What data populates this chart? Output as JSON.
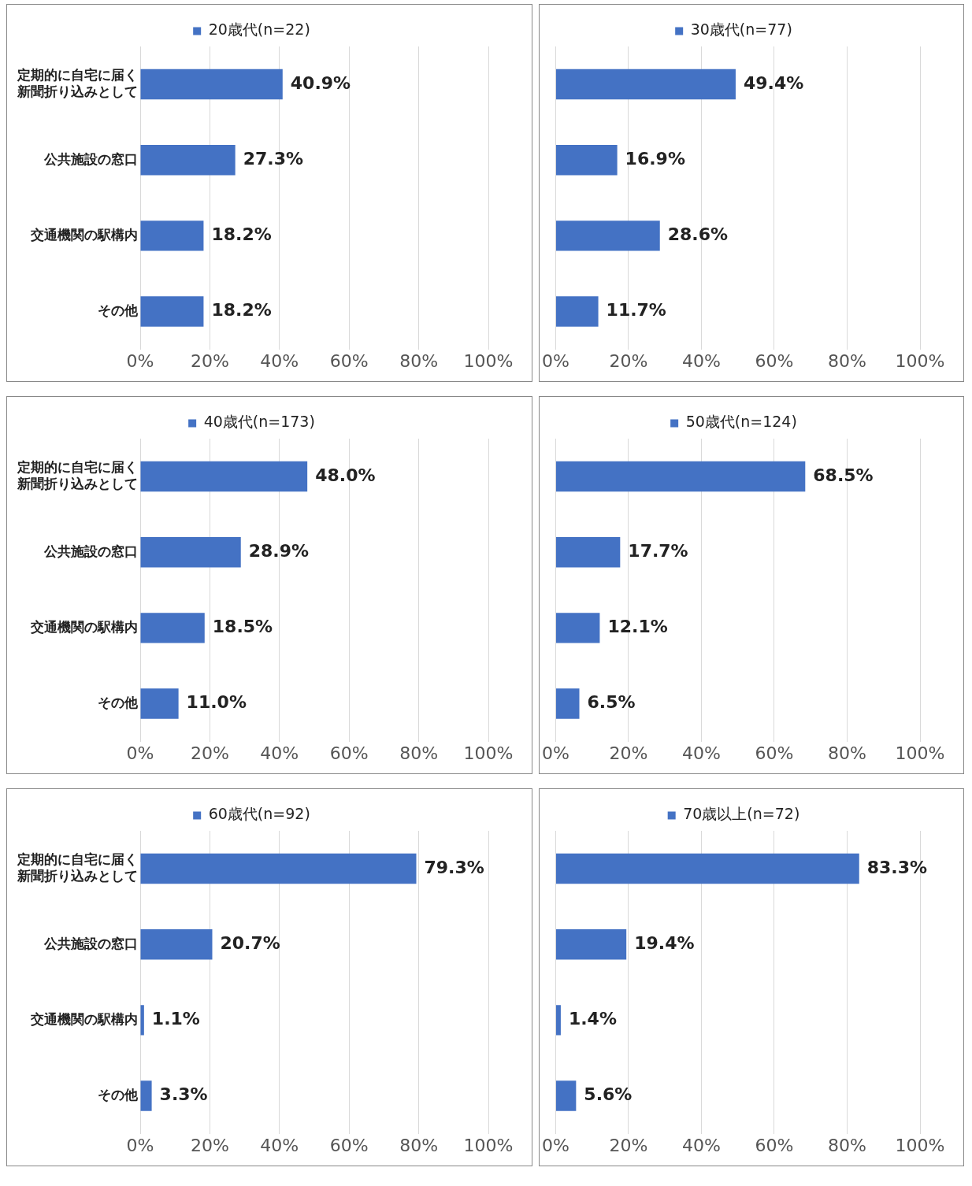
{
  "chart_data": [
    {
      "type": "bar",
      "orientation": "horizontal",
      "categories": [
        "定期的に自宅に届く新聞折り込みとして",
        "公共施設の窓口",
        "交通機関の駅構内",
        "その他"
      ],
      "series": [
        {
          "name": "20歳代(n=22)",
          "color": "#4472c4",
          "values": [
            40.9,
            27.3,
            18.2,
            18.2
          ],
          "value_labels": [
            "40.9%",
            "27.3%",
            "18.2%",
            "18.2%"
          ]
        }
      ],
      "xlim": [
        0,
        100
      ],
      "xticks": [
        {
          "value": 0,
          "label": "0%"
        },
        {
          "value": 20,
          "label": "20%"
        },
        {
          "value": 40,
          "label": "40%"
        },
        {
          "value": 60,
          "label": "60%"
        },
        {
          "value": 80,
          "label": "80%"
        },
        {
          "value": 100,
          "label": "100%"
        }
      ],
      "grid": "x",
      "legend": "top"
    },
    {
      "type": "bar",
      "orientation": "horizontal",
      "categories": [
        null,
        null,
        null,
        null
      ],
      "series": [
        {
          "name": "30歳代(n=77)",
          "color": "#4472c4",
          "values": [
            49.4,
            16.9,
            28.6,
            11.7
          ],
          "value_labels": [
            "49.4%",
            "16.9%",
            "28.6%",
            "11.7%"
          ]
        }
      ],
      "xlim": [
        0,
        100
      ],
      "xticks": [
        {
          "value": 0,
          "label": "0%"
        },
        {
          "value": 20,
          "label": "20%"
        },
        {
          "value": 40,
          "label": "40%"
        },
        {
          "value": 60,
          "label": "60%"
        },
        {
          "value": 80,
          "label": "80%"
        },
        {
          "value": 100,
          "label": "100%"
        }
      ],
      "grid": "x",
      "legend": "top"
    },
    {
      "type": "bar",
      "orientation": "horizontal",
      "categories": [
        "定期的に自宅に届く新聞折り込みとして",
        "公共施設の窓口",
        "交通機関の駅構内",
        "その他"
      ],
      "series": [
        {
          "name": "40歳代(n=173)",
          "color": "#4472c4",
          "values": [
            48.0,
            28.9,
            18.5,
            11.0
          ],
          "value_labels": [
            "48.0%",
            "28.9%",
            "18.5%",
            "11.0%"
          ]
        }
      ],
      "xlim": [
        0,
        100
      ],
      "xticks": [
        {
          "value": 0,
          "label": "0%"
        },
        {
          "value": 20,
          "label": "20%"
        },
        {
          "value": 40,
          "label": "40%"
        },
        {
          "value": 60,
          "label": "60%"
        },
        {
          "value": 80,
          "label": "80%"
        },
        {
          "value": 100,
          "label": "100%"
        }
      ],
      "grid": "x",
      "legend": "top"
    },
    {
      "type": "bar",
      "orientation": "horizontal",
      "categories": [
        null,
        null,
        null,
        null
      ],
      "series": [
        {
          "name": "50歳代(n=124)",
          "color": "#4472c4",
          "values": [
            68.5,
            17.7,
            12.1,
            6.5
          ],
          "value_labels": [
            "68.5%",
            "17.7%",
            "12.1%",
            "6.5%"
          ]
        }
      ],
      "xlim": [
        0,
        100
      ],
      "xticks": [
        {
          "value": 0,
          "label": "0%"
        },
        {
          "value": 20,
          "label": "20%"
        },
        {
          "value": 40,
          "label": "40%"
        },
        {
          "value": 60,
          "label": "60%"
        },
        {
          "value": 80,
          "label": "80%"
        },
        {
          "value": 100,
          "label": "100%"
        }
      ],
      "grid": "x",
      "legend": "top"
    },
    {
      "type": "bar",
      "orientation": "horizontal",
      "categories": [
        "定期的に自宅に届く新聞折り込みとして",
        "公共施設の窓口",
        "交通機関の駅構内",
        "その他"
      ],
      "series": [
        {
          "name": "60歳代(n=92)",
          "color": "#4472c4",
          "values": [
            79.3,
            20.7,
            1.1,
            3.3
          ],
          "value_labels": [
            "79.3%",
            "20.7%",
            "1.1%",
            "3.3%"
          ]
        }
      ],
      "xlim": [
        0,
        100
      ],
      "xticks": [
        {
          "value": 0,
          "label": "0%"
        },
        {
          "value": 20,
          "label": "20%"
        },
        {
          "value": 40,
          "label": "40%"
        },
        {
          "value": 60,
          "label": "60%"
        },
        {
          "value": 80,
          "label": "80%"
        },
        {
          "value": 100,
          "label": "100%"
        }
      ],
      "grid": "x",
      "legend": "top"
    },
    {
      "type": "bar",
      "orientation": "horizontal",
      "categories": [
        null,
        null,
        null,
        null
      ],
      "series": [
        {
          "name": "70歳以上(n=72)",
          "color": "#4472c4",
          "values": [
            83.3,
            19.4,
            1.4,
            5.6
          ],
          "value_labels": [
            "83.3%",
            "19.4%",
            "1.4%",
            "5.6%"
          ]
        }
      ],
      "xlim": [
        0,
        100
      ],
      "xticks": [
        {
          "value": 0,
          "label": "0%"
        },
        {
          "value": 20,
          "label": "20%"
        },
        {
          "value": 40,
          "label": "40%"
        },
        {
          "value": 60,
          "label": "60%"
        },
        {
          "value": 80,
          "label": "80%"
        },
        {
          "value": 100,
          "label": "100%"
        }
      ],
      "grid": "x",
      "legend": "top"
    }
  ]
}
